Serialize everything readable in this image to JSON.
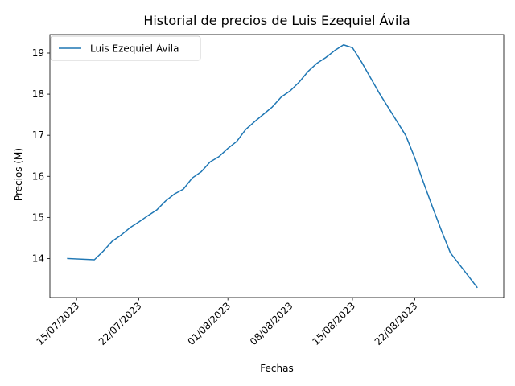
{
  "chart_data": {
    "type": "line",
    "title": "Historial de precios de Luis Ezequiel Ávila",
    "xlabel": "Fechas",
    "ylabel": "Precios (M)",
    "x_ticks": [
      "15/07/2023",
      "22/07/2023",
      "01/08/2023",
      "08/08/2023",
      "15/08/2023",
      "22/08/2023"
    ],
    "y_ticks": [
      "14",
      "15",
      "16",
      "17",
      "18",
      "19"
    ],
    "xlim": [
      "2023-07-12",
      "2023-09-01"
    ],
    "ylim": [
      13.05,
      19.45
    ],
    "grid": false,
    "legend_position": "top-left",
    "series": [
      {
        "name": "Luis Ezequiel Ávila",
        "color": "#1f77b4",
        "points": [
          [
            "2023-07-14",
            14.0
          ],
          [
            "2023-07-17",
            13.97
          ],
          [
            "2023-07-18",
            14.18
          ],
          [
            "2023-07-19",
            14.42
          ],
          [
            "2023-07-20",
            14.57
          ],
          [
            "2023-07-21",
            14.75
          ],
          [
            "2023-07-22",
            14.89
          ],
          [
            "2023-07-23",
            15.04
          ],
          [
            "2023-07-24",
            15.18
          ],
          [
            "2023-07-25",
            15.4
          ],
          [
            "2023-07-26",
            15.57
          ],
          [
            "2023-07-27",
            15.69
          ],
          [
            "2023-07-28",
            15.96
          ],
          [
            "2023-07-29",
            16.11
          ],
          [
            "2023-07-30",
            16.35
          ],
          [
            "2023-07-31",
            16.48
          ],
          [
            "2023-08-01",
            16.68
          ],
          [
            "2023-08-02",
            16.85
          ],
          [
            "2023-08-03",
            17.14
          ],
          [
            "2023-08-04",
            17.33
          ],
          [
            "2023-08-05",
            17.51
          ],
          [
            "2023-08-06",
            17.69
          ],
          [
            "2023-08-07",
            17.93
          ],
          [
            "2023-08-08",
            18.08
          ],
          [
            "2023-08-09",
            18.29
          ],
          [
            "2023-08-10",
            18.55
          ],
          [
            "2023-08-11",
            18.75
          ],
          [
            "2023-08-12",
            18.89
          ],
          [
            "2023-08-13",
            19.06
          ],
          [
            "2023-08-14",
            19.2
          ],
          [
            "2023-08-15",
            19.13
          ],
          [
            "2023-08-16",
            18.79
          ],
          [
            "2023-08-18",
            18.03
          ],
          [
            "2023-08-21",
            16.99
          ],
          [
            "2023-08-22",
            16.45
          ],
          [
            "2023-08-23",
            15.84
          ],
          [
            "2023-08-24",
            15.25
          ],
          [
            "2023-08-25",
            14.68
          ],
          [
            "2023-08-26",
            14.14
          ],
          [
            "2023-08-29",
            13.3
          ]
        ]
      }
    ]
  }
}
